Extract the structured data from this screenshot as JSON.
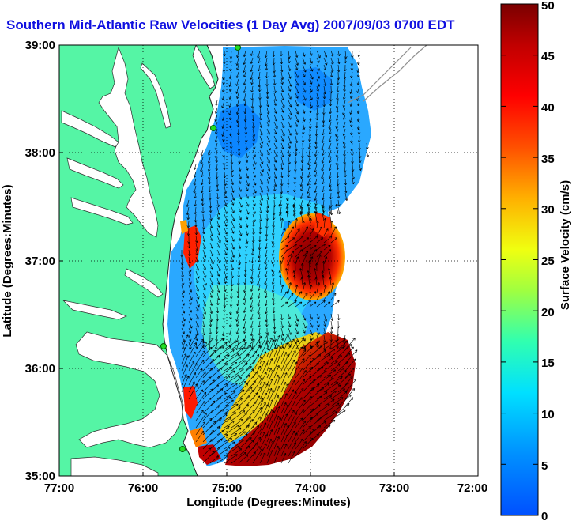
{
  "title": "Southern Mid-Atlantic Raw Velocities (1 Day Avg) 2007/09/03 0700 EDT",
  "x_axis": {
    "label": "Longitude (Degrees:Minutes)",
    "ticks": [
      "77:00",
      "76:00",
      "75:00",
      "74:00",
      "73:00",
      "72:00"
    ]
  },
  "y_axis": {
    "label": "Latitude (Degrees:Minutes)",
    "ticks": [
      "39:00",
      "38:00",
      "37:00",
      "36:00",
      "35:00"
    ]
  },
  "colorbar": {
    "label": "Surface Velocity (cm/s)",
    "ticks": [
      "0",
      "5",
      "10",
      "15",
      "20",
      "25",
      "30",
      "35",
      "40",
      "45",
      "50"
    ],
    "min": 0,
    "max": 50
  },
  "colors": {
    "land": "#55f5a5",
    "title": "#1010e0",
    "station": "#22dd22"
  }
}
